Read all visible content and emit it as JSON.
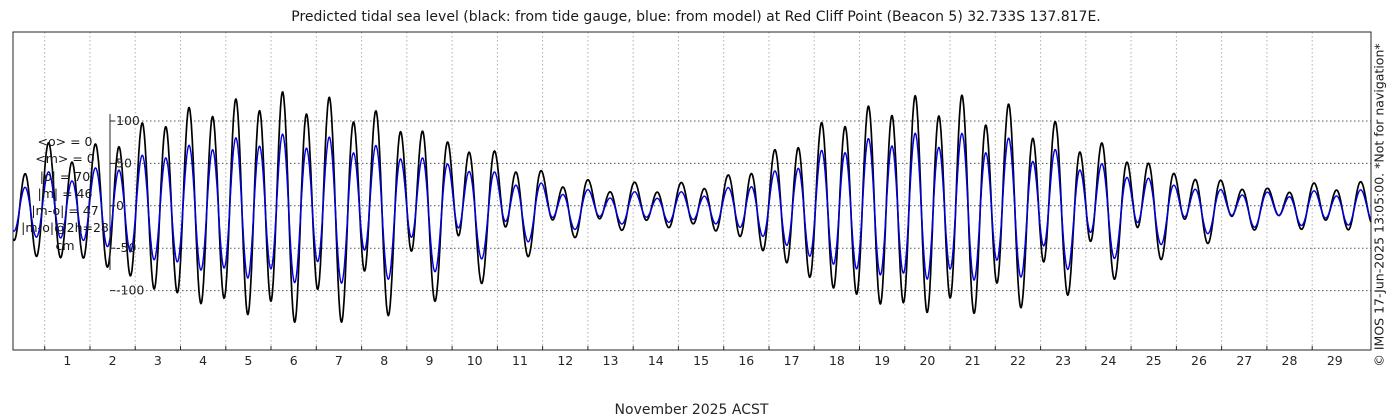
{
  "chart_data": {
    "type": "line",
    "title": "Predicted tidal sea level (black: from tide gauge, blue: from model) at Red Cliff Point (Beacon 5) 32.733S 137.817E.",
    "xlabel": "November 2025 ACST",
    "ylabel": "",
    "x_ticks": [
      "1",
      "2",
      "3",
      "4",
      "5",
      "6",
      "7",
      "8",
      "9",
      "10",
      "11",
      "12",
      "13",
      "14",
      "15",
      "16",
      "17",
      "18",
      "19",
      "20",
      "21",
      "22",
      "23",
      "24",
      "25",
      "26",
      "27",
      "28",
      "29"
    ],
    "y_ticks": [
      "100",
      "50",
      "0",
      "-50",
      "-100"
    ],
    "xlim": [
      0.3,
      30.3
    ],
    "ylim": [
      -170,
      205
    ],
    "grid": true,
    "stats": [
      "<o> = 0",
      "<m> = 0",
      "|o| = 70",
      "|m| = 46",
      "|m-o| = 47",
      "|m-o|@2h=28",
      "cm"
    ],
    "credit": "© IMOS 17-Jun-2025 13:05:00. *Not for navigation*",
    "series": [
      {
        "name": "from tide gauge",
        "color": "#000000",
        "amplitude_envelope": {
          "day": [
            0.3,
            1,
            2,
            3,
            4,
            5,
            6,
            7,
            8,
            9,
            10,
            11,
            12,
            13,
            14,
            15,
            16,
            17,
            18,
            19,
            20,
            21,
            22,
            23,
            24,
            25,
            26,
            27,
            28,
            29,
            30.3
          ],
          "amplitude": [
            55,
            75,
            70,
            95,
            115,
            125,
            140,
            142,
            138,
            125,
            105,
            85,
            50,
            35,
            30,
            28,
            34,
            62,
            95,
            115,
            130,
            135,
            132,
            120,
            100,
            80,
            55,
            40,
            25,
            30,
            30
          ]
        },
        "mean_offset": 0,
        "diurnal_share": 0.35
      },
      {
        "name": "from model",
        "color": "#0000e6",
        "amplitude_envelope": {
          "day": [
            0.3,
            1,
            2,
            3,
            4,
            5,
            6,
            7,
            8,
            9,
            10,
            11,
            12,
            13,
            14,
            15,
            16,
            17,
            18,
            19,
            20,
            21,
            22,
            23,
            24,
            25,
            26,
            27,
            28,
            29,
            30.3
          ],
          "amplitude": [
            38,
            42,
            45,
            60,
            72,
            82,
            90,
            92,
            90,
            82,
            72,
            55,
            35,
            24,
            20,
            19,
            22,
            40,
            65,
            80,
            88,
            90,
            90,
            82,
            70,
            55,
            38,
            28,
            22,
            22,
            22
          ]
        },
        "mean_offset": -2,
        "diurnal_share": 0.35
      }
    ]
  }
}
